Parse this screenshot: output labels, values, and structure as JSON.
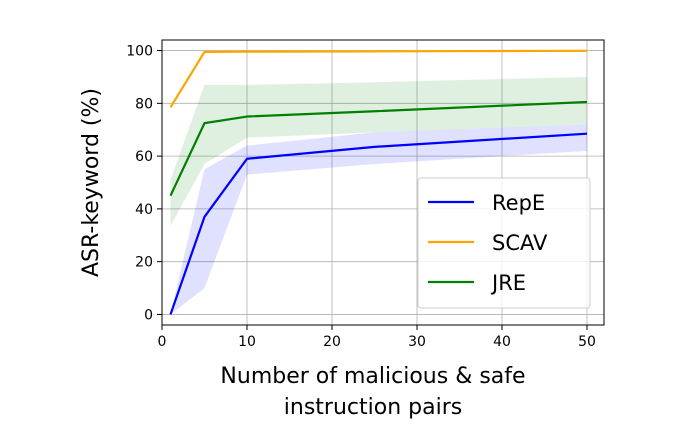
{
  "chart_data": {
    "type": "line",
    "xlabel_lines": [
      "Number of malicious & safe",
      "instruction pairs"
    ],
    "ylabel": "ASR-keyword (%)",
    "xlim": [
      0,
      52
    ],
    "ylim": [
      -4,
      104
    ],
    "xticks": [
      0,
      10,
      20,
      30,
      40,
      50
    ],
    "yticks": [
      0,
      20,
      40,
      60,
      80,
      100
    ],
    "grid": true,
    "legend_position": "lower-right",
    "series": [
      {
        "name": "RepE",
        "color": "#0000ff",
        "x": [
          1,
          5,
          10,
          25,
          50
        ],
        "y": [
          0,
          37,
          59,
          63.5,
          68.5
        ],
        "band_low": [
          0,
          10,
          53,
          57,
          62
        ],
        "band_high": [
          0,
          55,
          64,
          69,
          72
        ]
      },
      {
        "name": "SCAV",
        "color": "#ffa500",
        "x": [
          1,
          5,
          10,
          25,
          50
        ],
        "y": [
          78.5,
          99.5,
          99.6,
          99.7,
          99.9
        ],
        "band_low": [
          78.5,
          99,
          99.2,
          99.4,
          99.6
        ],
        "band_high": [
          78.5,
          100,
          100,
          100,
          100
        ]
      },
      {
        "name": "JRE",
        "color": "#008000",
        "x": [
          1,
          5,
          10,
          25,
          50
        ],
        "y": [
          45,
          72.5,
          75,
          77,
          80.5
        ],
        "band_low": [
          33.5,
          57,
          67,
          69,
          72
        ],
        "band_high": [
          51,
          87,
          87,
          88,
          90
        ]
      }
    ]
  }
}
